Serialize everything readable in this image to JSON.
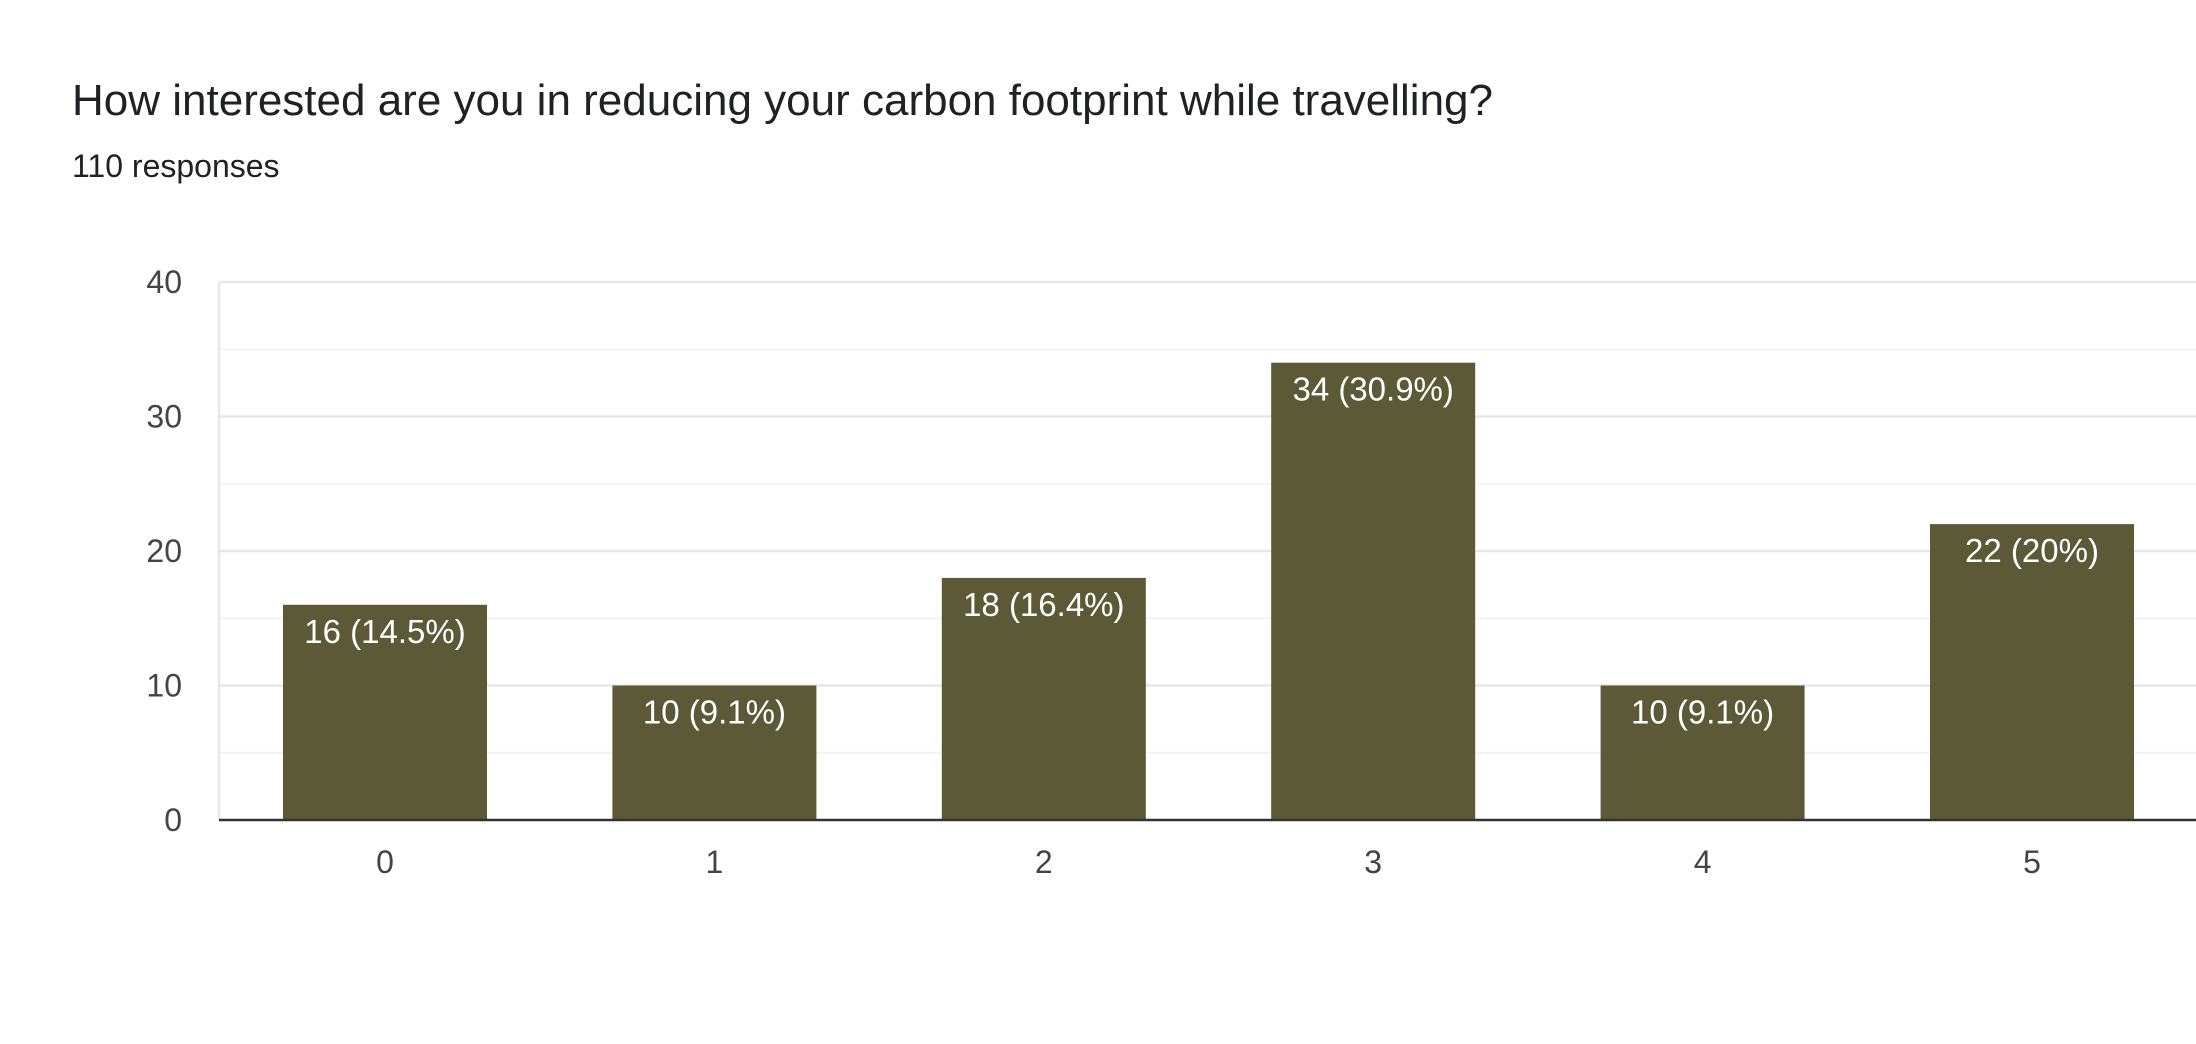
{
  "header": {
    "title": "How interested are you in reducing your carbon footprint while travelling?",
    "subtitle": "110 responses"
  },
  "colors": {
    "bar": "#5c5a36",
    "grid_major": "#e8e8e8",
    "grid_minor": "#f3f3f3",
    "axis": "#333333",
    "frame": "#e8e8e8"
  },
  "chart_data": {
    "type": "bar",
    "title": "How interested are you in reducing your carbon footprint while travelling?",
    "subtitle": "110 responses",
    "categories": [
      "0",
      "1",
      "2",
      "3",
      "4",
      "5"
    ],
    "values": [
      16,
      10,
      18,
      34,
      10,
      22
    ],
    "data_labels": [
      "16 (14.5%)",
      "10 (9.1%)",
      "18 (16.4%)",
      "34 (30.9%)",
      "10 (9.1%)",
      "22 (20%)"
    ],
    "ylim": [
      0,
      40
    ],
    "yticks": [
      0,
      10,
      20,
      30,
      40
    ],
    "xlabel": "",
    "ylabel": "",
    "grid": true,
    "legend": "none"
  }
}
